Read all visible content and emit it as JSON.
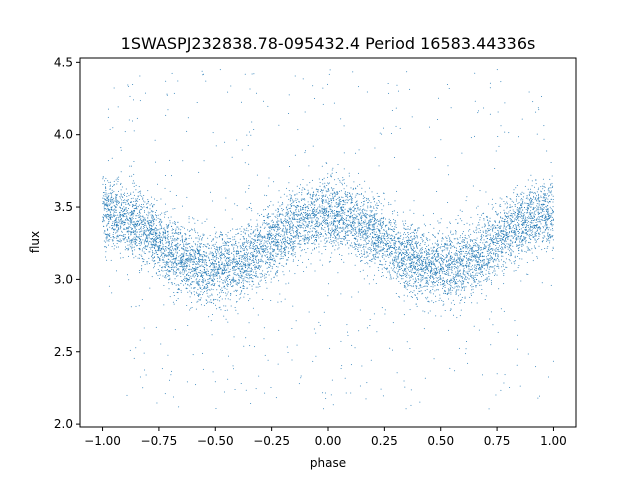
{
  "chart_data": {
    "type": "scatter",
    "title": "1SWASPJ232838.78-095432.4 Period 16583.44336s",
    "xlabel": "phase",
    "ylabel": "flux",
    "xlim": [
      -1.1,
      1.1
    ],
    "ylim": [
      1.98,
      4.53
    ],
    "xticks": [
      -1.0,
      -0.75,
      -0.5,
      -0.25,
      0.0,
      0.25,
      0.5,
      0.75,
      1.0
    ],
    "xtick_labels": [
      "−1.00",
      "−0.75",
      "−0.50",
      "−0.25",
      "0.00",
      "0.25",
      "0.50",
      "0.75",
      "1.00"
    ],
    "yticks": [
      2.0,
      2.5,
      3.0,
      3.5,
      4.0,
      4.5
    ],
    "ytick_labels": [
      "2.0",
      "2.5",
      "3.0",
      "3.5",
      "4.0",
      "4.5"
    ],
    "grid": false,
    "marker_color": "#1f77b4",
    "series_shape": {
      "phase_range": [
        -1.0,
        1.0
      ],
      "minima_at_phase": [
        -0.5,
        0.5
      ],
      "maxima_at_phase": [
        -1.0,
        0.0,
        1.0
      ],
      "flux_at_maxima": 3.45,
      "flux_at_minima": 3.07,
      "core_scatter": 0.12,
      "outlier_range": [
        2.1,
        4.45
      ]
    }
  }
}
